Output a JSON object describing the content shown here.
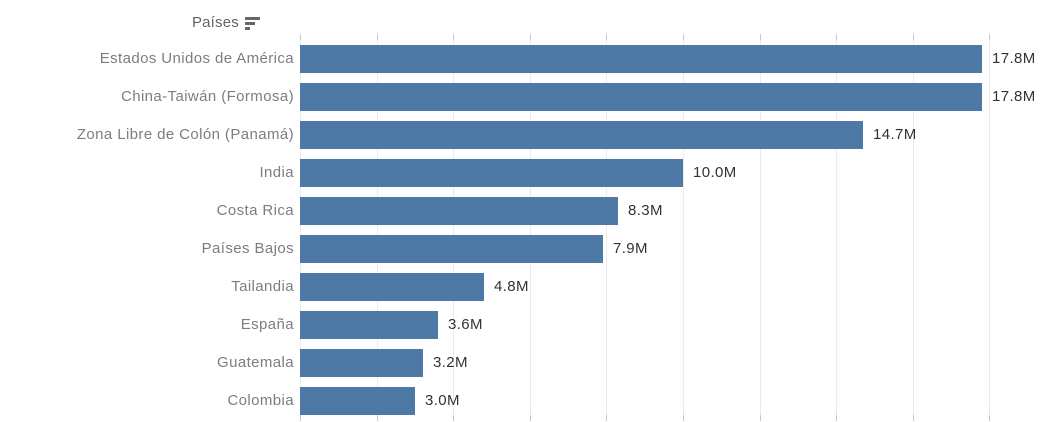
{
  "header": {
    "title": "Países",
    "sort_icon": "sort-descending-icon"
  },
  "chart_data": {
    "type": "bar",
    "orientation": "horizontal",
    "title": "Países",
    "categories": [
      "Estados Unidos de América",
      "China-Taiwán (Formosa)",
      "Zona Libre de Colón (Panamá)",
      "India",
      "Costa Rica",
      "Países Bajos",
      "Tailandia",
      "España",
      "Guatemala",
      "Colombia"
    ],
    "values": [
      17.8,
      17.8,
      14.7,
      10.0,
      8.3,
      7.9,
      4.8,
      3.6,
      3.2,
      3.0
    ],
    "value_labels": [
      "17.8M",
      "17.8M",
      "14.7M",
      "10.0M",
      "8.3M",
      "7.9M",
      "4.8M",
      "3.6M",
      "3.2M",
      "3.0M"
    ],
    "value_unit": "M",
    "xlabel": "",
    "ylabel": "Países",
    "xlim": [
      0,
      20
    ],
    "gridline_interval": 2,
    "grid": true,
    "legend": false,
    "bar_color": "#4e79a7",
    "gridline_color": "#ebebeb",
    "category_label_color": "#7b7e80",
    "value_label_color": "#333333",
    "header_color": "#5f6368"
  }
}
